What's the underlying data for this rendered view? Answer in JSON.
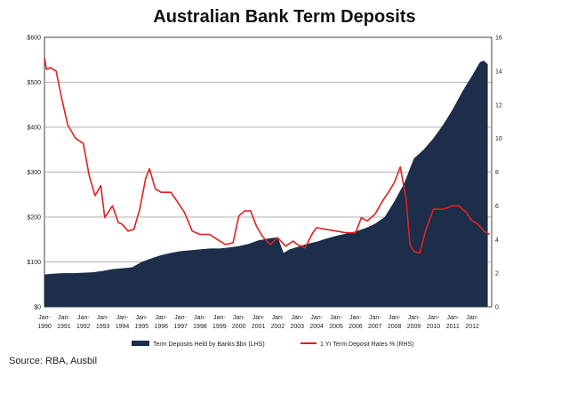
{
  "source": "Source: RBA, Ausbil",
  "chart_data": {
    "type": "area+line",
    "title": "Australian Bank Term Deposits",
    "left_axis": {
      "ticks": [
        "$0",
        "$100",
        "$200",
        "$300",
        "$400",
        "$500",
        "$600"
      ],
      "min": 0,
      "max": 600
    },
    "right_axis": {
      "ticks": [
        "0",
        "2",
        "4",
        "6",
        "8",
        "10",
        "12",
        "14",
        "16"
      ],
      "min": 0,
      "max": 16
    },
    "x_axis": {
      "min": 1990.0,
      "max": 2013.0,
      "ticks": [
        {
          "x": 1990,
          "top": "Jan-",
          "bottom": "1990"
        },
        {
          "x": 1991,
          "top": "Jan-",
          "bottom": "1991"
        },
        {
          "x": 1992,
          "top": "Jan-",
          "bottom": "1992"
        },
        {
          "x": 1993,
          "top": "Jan-",
          "bottom": "1993"
        },
        {
          "x": 1994,
          "top": "Jan-",
          "bottom": "1994"
        },
        {
          "x": 1995,
          "top": "Jan-",
          "bottom": "1995"
        },
        {
          "x": 1996,
          "top": "Jan-",
          "bottom": "1996"
        },
        {
          "x": 1997,
          "top": "Jan-",
          "bottom": "1997"
        },
        {
          "x": 1998,
          "top": "Jan-",
          "bottom": "1998"
        },
        {
          "x": 1999,
          "top": "Jan-",
          "bottom": "1999"
        },
        {
          "x": 2000,
          "top": "Jan-",
          "bottom": "2000"
        },
        {
          "x": 2001,
          "top": "Jan-",
          "bottom": "2001"
        },
        {
          "x": 2002,
          "top": "Jan-",
          "bottom": "2002"
        },
        {
          "x": 2003,
          "top": "Jan-",
          "bottom": "2003"
        },
        {
          "x": 2004,
          "top": "Jan-",
          "bottom": "2004"
        },
        {
          "x": 2005,
          "top": "Jan-",
          "bottom": "2005"
        },
        {
          "x": 2006,
          "top": "Jan-",
          "bottom": "2006"
        },
        {
          "x": 2007,
          "top": "Jan-",
          "bottom": "2007"
        },
        {
          "x": 2008,
          "top": "Jan-",
          "bottom": "2008"
        },
        {
          "x": 2009,
          "top": "Jan-",
          "bottom": "2009"
        },
        {
          "x": 2010,
          "top": "Jan-",
          "bottom": "2010"
        },
        {
          "x": 2011,
          "top": "Jan-",
          "bottom": "2011"
        },
        {
          "x": 2012,
          "top": "Jan-",
          "bottom": "2012"
        }
      ]
    },
    "grid": true,
    "legend_position": "bottom",
    "series": [
      {
        "name": "Term Deposits Held by Banks $bn (LHS)",
        "type": "area",
        "axis": "left",
        "color": "#1c2e4a",
        "points": [
          [
            1990.0,
            72
          ],
          [
            1990.5,
            74
          ],
          [
            1991.0,
            75
          ],
          [
            1991.5,
            75
          ],
          [
            1992.0,
            76
          ],
          [
            1992.5,
            77
          ],
          [
            1993.0,
            80
          ],
          [
            1993.5,
            84
          ],
          [
            1994.0,
            86
          ],
          [
            1994.5,
            88
          ],
          [
            1995.0,
            100
          ],
          [
            1995.5,
            108
          ],
          [
            1996.0,
            115
          ],
          [
            1996.5,
            120
          ],
          [
            1997.0,
            124
          ],
          [
            1997.5,
            126
          ],
          [
            1998.0,
            128
          ],
          [
            1998.5,
            130
          ],
          [
            1999.0,
            130
          ],
          [
            1999.5,
            132
          ],
          [
            2000.0,
            135
          ],
          [
            2000.5,
            140
          ],
          [
            2001.0,
            148
          ],
          [
            2001.5,
            152
          ],
          [
            2002.0,
            155
          ],
          [
            2002.3,
            120
          ],
          [
            2002.6,
            128
          ],
          [
            2003.0,
            133
          ],
          [
            2003.5,
            140
          ],
          [
            2004.0,
            145
          ],
          [
            2004.5,
            152
          ],
          [
            2005.0,
            158
          ],
          [
            2005.5,
            163
          ],
          [
            2006.0,
            168
          ],
          [
            2006.5,
            175
          ],
          [
            2007.0,
            185
          ],
          [
            2007.5,
            200
          ],
          [
            2008.0,
            235
          ],
          [
            2008.5,
            275
          ],
          [
            2009.0,
            330
          ],
          [
            2009.5,
            350
          ],
          [
            2010.0,
            375
          ],
          [
            2010.5,
            405
          ],
          [
            2011.0,
            440
          ],
          [
            2011.5,
            480
          ],
          [
            2012.0,
            515
          ],
          [
            2012.4,
            545
          ],
          [
            2012.6,
            548
          ],
          [
            2012.8,
            540
          ]
        ]
      },
      {
        "name": "1 Yr Term Deposit Rates % (RHS)",
        "type": "line",
        "axis": "right",
        "color": "#e02020",
        "points": [
          [
            1990.0,
            14.8
          ],
          [
            1990.1,
            14.1
          ],
          [
            1990.3,
            14.2
          ],
          [
            1990.6,
            14.0
          ],
          [
            1990.9,
            12.3
          ],
          [
            1991.2,
            10.8
          ],
          [
            1991.6,
            10.0
          ],
          [
            1992.0,
            9.7
          ],
          [
            1992.3,
            7.8
          ],
          [
            1992.6,
            6.6
          ],
          [
            1992.9,
            7.2
          ],
          [
            1993.1,
            5.3
          ],
          [
            1993.5,
            6.0
          ],
          [
            1993.8,
            5.0
          ],
          [
            1994.0,
            4.9
          ],
          [
            1994.3,
            4.5
          ],
          [
            1994.6,
            4.6
          ],
          [
            1994.9,
            5.8
          ],
          [
            1995.2,
            7.6
          ],
          [
            1995.4,
            8.2
          ],
          [
            1995.7,
            7.0
          ],
          [
            1996.0,
            6.8
          ],
          [
            1996.5,
            6.8
          ],
          [
            1996.8,
            6.3
          ],
          [
            1997.2,
            5.6
          ],
          [
            1997.6,
            4.5
          ],
          [
            1998.0,
            4.3
          ],
          [
            1998.5,
            4.3
          ],
          [
            1998.9,
            4.0
          ],
          [
            1999.3,
            3.7
          ],
          [
            1999.7,
            3.8
          ],
          [
            2000.0,
            5.4
          ],
          [
            2000.3,
            5.7
          ],
          [
            2000.6,
            5.7
          ],
          [
            2000.9,
            4.8
          ],
          [
            2001.2,
            4.2
          ],
          [
            2001.6,
            3.7
          ],
          [
            2002.0,
            4.1
          ],
          [
            2002.4,
            3.6
          ],
          [
            2002.8,
            3.9
          ],
          [
            2003.0,
            3.7
          ],
          [
            2003.4,
            3.5
          ],
          [
            2003.8,
            4.4
          ],
          [
            2004.0,
            4.7
          ],
          [
            2004.5,
            4.6
          ],
          [
            2005.0,
            4.5
          ],
          [
            2005.5,
            4.4
          ],
          [
            2006.0,
            4.4
          ],
          [
            2006.3,
            5.3
          ],
          [
            2006.6,
            5.1
          ],
          [
            2007.0,
            5.5
          ],
          [
            2007.4,
            6.3
          ],
          [
            2007.8,
            7.0
          ],
          [
            2008.0,
            7.4
          ],
          [
            2008.3,
            8.3
          ],
          [
            2008.6,
            6.4
          ],
          [
            2008.8,
            3.7
          ],
          [
            2009.0,
            3.3
          ],
          [
            2009.3,
            3.2
          ],
          [
            2009.6,
            4.5
          ],
          [
            2010.0,
            5.8
          ],
          [
            2010.5,
            5.8
          ],
          [
            2011.0,
            6.0
          ],
          [
            2011.3,
            6.0
          ],
          [
            2011.7,
            5.6
          ],
          [
            2012.0,
            5.1
          ],
          [
            2012.3,
            4.9
          ],
          [
            2012.6,
            4.5
          ],
          [
            2012.9,
            4.3
          ]
        ]
      }
    ]
  }
}
